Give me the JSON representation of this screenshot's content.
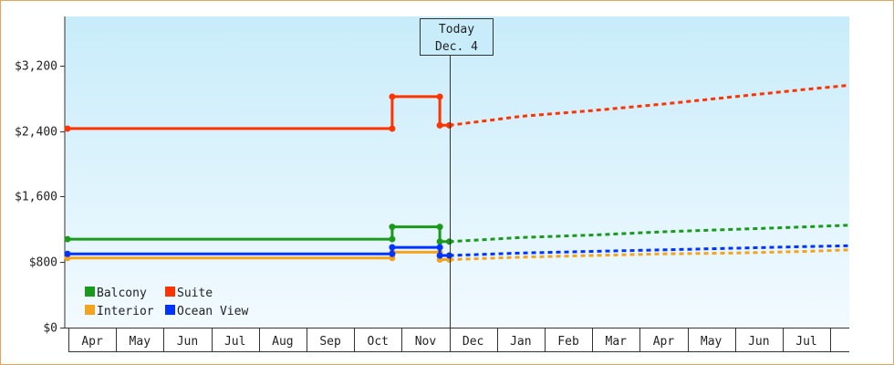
{
  "chart_data": {
    "type": "line",
    "title": "",
    "xlabel": "",
    "ylabel": "",
    "ylim": [
      0,
      3800
    ],
    "y_ticks": [
      {
        "value": 0,
        "label": "$0"
      },
      {
        "value": 800,
        "label": "$800"
      },
      {
        "value": 1600,
        "label": "$1,600"
      },
      {
        "value": 2400,
        "label": "$2,400"
      },
      {
        "value": 3200,
        "label": "$3,200"
      }
    ],
    "x_months": [
      "Apr",
      "May",
      "Jun",
      "Jul",
      "Aug",
      "Sep",
      "Oct",
      "Nov",
      "Dec",
      "Jan",
      "Feb",
      "Mar",
      "Apr",
      "May",
      "Jun",
      "Jul"
    ],
    "x_domain": [
      0,
      16.4
    ],
    "today": {
      "x": 8.0,
      "line1": "Today",
      "line2": "Dec. 4"
    },
    "grid": false,
    "legend_position": "bottom-left",
    "series": [
      {
        "name": "Balcony",
        "color": "#1a9a1a",
        "history": [
          [
            0.0,
            1080
          ],
          [
            6.8,
            1080
          ],
          [
            6.8,
            1230
          ],
          [
            7.8,
            1230
          ],
          [
            7.8,
            1050
          ],
          [
            8.0,
            1050
          ]
        ],
        "forecast": [
          [
            8.0,
            1050
          ],
          [
            9.5,
            1100
          ],
          [
            11.0,
            1130
          ],
          [
            12.5,
            1170
          ],
          [
            14.0,
            1200
          ],
          [
            15.5,
            1230
          ],
          [
            16.4,
            1250
          ]
        ]
      },
      {
        "name": "Suite",
        "color": "#ff3300",
        "history": [
          [
            0.0,
            2430
          ],
          [
            6.8,
            2430
          ],
          [
            6.8,
            2820
          ],
          [
            7.8,
            2820
          ],
          [
            7.8,
            2470
          ],
          [
            8.0,
            2470
          ]
        ],
        "forecast": [
          [
            8.0,
            2470
          ],
          [
            9.5,
            2580
          ],
          [
            11.0,
            2650
          ],
          [
            12.5,
            2730
          ],
          [
            14.0,
            2820
          ],
          [
            15.5,
            2910
          ],
          [
            16.4,
            2960
          ]
        ]
      },
      {
        "name": "Interior",
        "color": "#f5a31a",
        "history": [
          [
            0.0,
            850
          ],
          [
            6.8,
            850
          ],
          [
            6.8,
            920
          ],
          [
            7.8,
            920
          ],
          [
            7.8,
            830
          ],
          [
            8.0,
            830
          ]
        ],
        "forecast": [
          [
            8.0,
            830
          ],
          [
            9.5,
            860
          ],
          [
            11.0,
            880
          ],
          [
            12.5,
            900
          ],
          [
            14.0,
            910
          ],
          [
            15.5,
            930
          ],
          [
            16.4,
            950
          ]
        ]
      },
      {
        "name": "Ocean View",
        "color": "#0033ff",
        "history": [
          [
            0.0,
            900
          ],
          [
            6.8,
            900
          ],
          [
            6.8,
            980
          ],
          [
            7.8,
            980
          ],
          [
            7.8,
            880
          ],
          [
            8.0,
            880
          ]
        ],
        "forecast": [
          [
            8.0,
            880
          ],
          [
            9.5,
            910
          ],
          [
            11.0,
            930
          ],
          [
            12.5,
            950
          ],
          [
            14.0,
            970
          ],
          [
            15.5,
            990
          ],
          [
            16.4,
            1000
          ]
        ]
      }
    ]
  }
}
